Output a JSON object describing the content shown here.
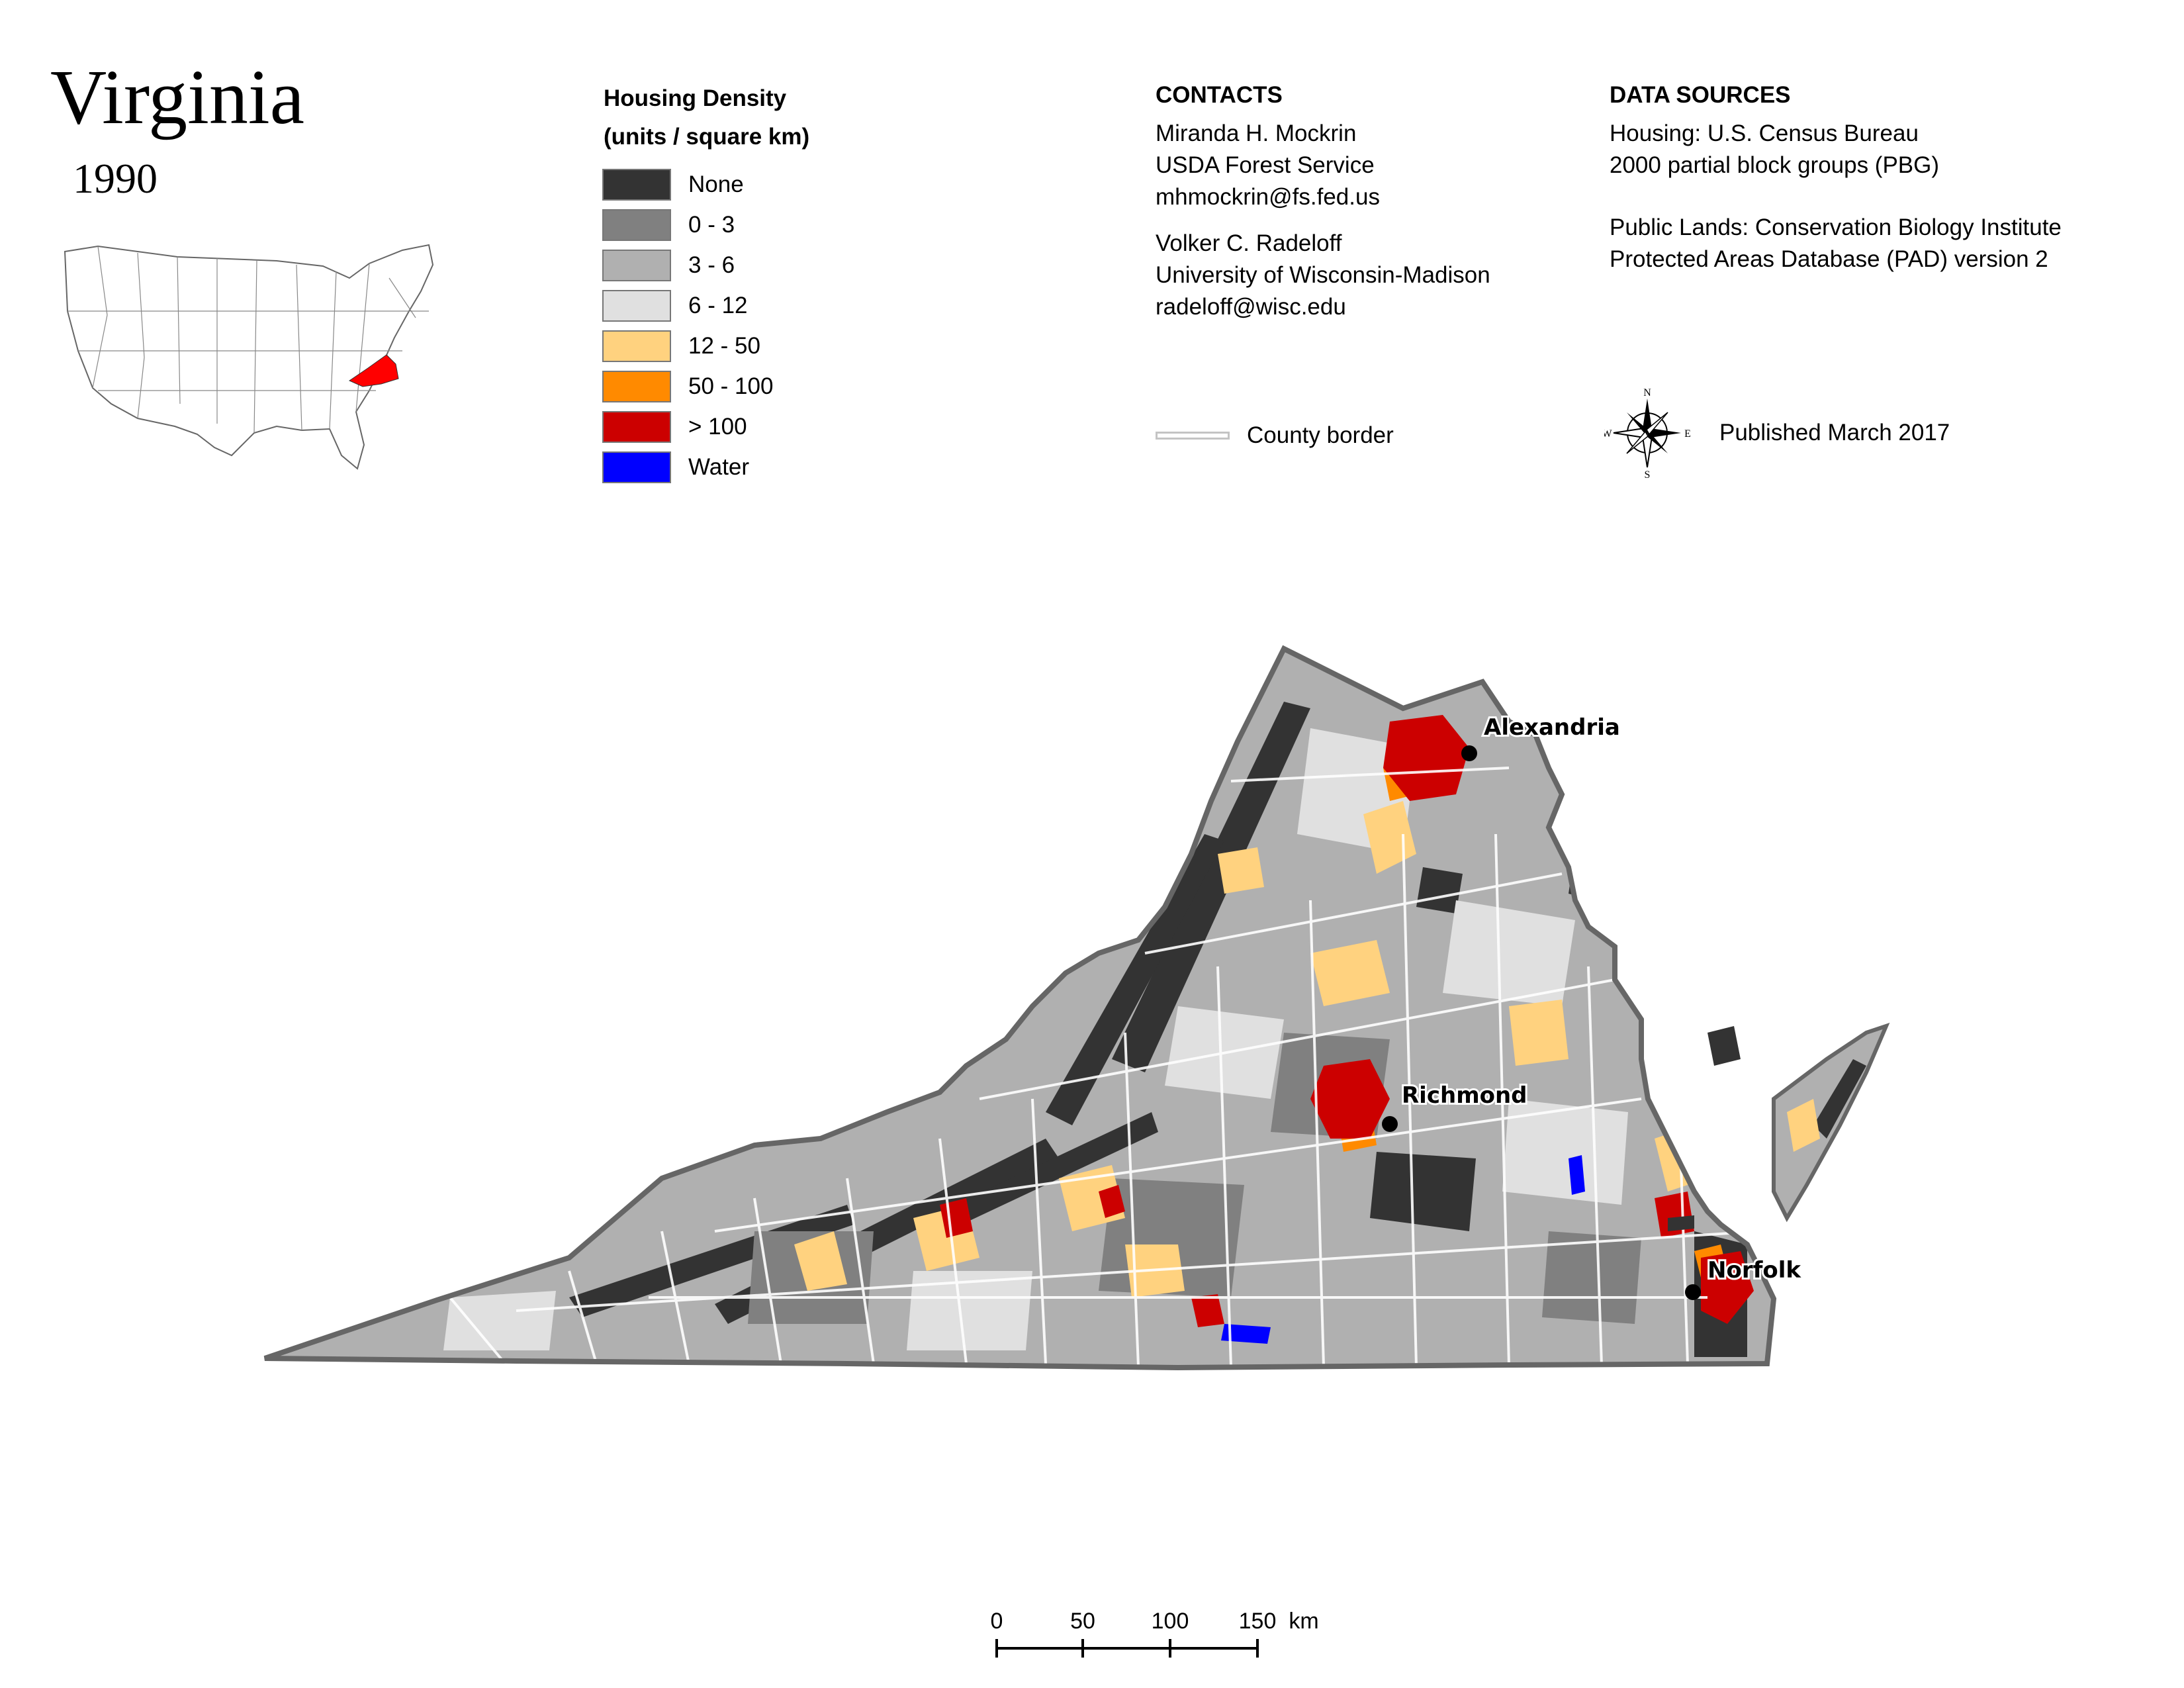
{
  "header": {
    "title": "Virginia",
    "year": "1990"
  },
  "legend": {
    "title_line1": "Housing Density",
    "title_line2": "(units / square km)",
    "items": [
      {
        "label": "None",
        "color": "#333333"
      },
      {
        "label": "0 - 3",
        "color": "#808080"
      },
      {
        "label": "3 - 6",
        "color": "#b0b0b0"
      },
      {
        "label": "6 - 12",
        "color": "#e0e0e0"
      },
      {
        "label": "12 - 50",
        "color": "#ffd27f"
      },
      {
        "label": "50 - 100",
        "color": "#ff8a00"
      },
      {
        "label": "> 100",
        "color": "#cc0000"
      },
      {
        "label": "Water",
        "color": "#0000ff"
      }
    ]
  },
  "contacts": {
    "heading": "CONTACTS",
    "person1": {
      "name": "Miranda H. Mockrin",
      "org": "USDA Forest Service",
      "email": "mhmockrin@fs.fed.us"
    },
    "person2": {
      "name": "Volker C. Radeloff",
      "org": "University of Wisconsin-Madison",
      "email": "radeloff@wisc.edu"
    }
  },
  "sources": {
    "heading": "DATA SOURCES",
    "housing_line1": "Housing: U.S. Census Bureau",
    "housing_line2": "2000 partial block groups (PBG)",
    "lands_line1": "Public Lands: Conservation Biology Institute",
    "lands_line2": "Protected Areas Database (PAD) version 2"
  },
  "county_border_label": "County border",
  "published": "Published March 2017",
  "compass": {
    "n": "N",
    "s": "S",
    "e": "E",
    "w": "W"
  },
  "cities": {
    "alexandria": "Alexandria",
    "richmond": "Richmond",
    "norfolk": "Norfolk"
  },
  "scale": {
    "t0": "0",
    "t50": "50",
    "t100": "100",
    "t150": "150",
    "unit": "km"
  },
  "colors": {
    "state_highlight": "#ff0000",
    "county_border": "#ffffff",
    "state_outline": "#666666"
  }
}
